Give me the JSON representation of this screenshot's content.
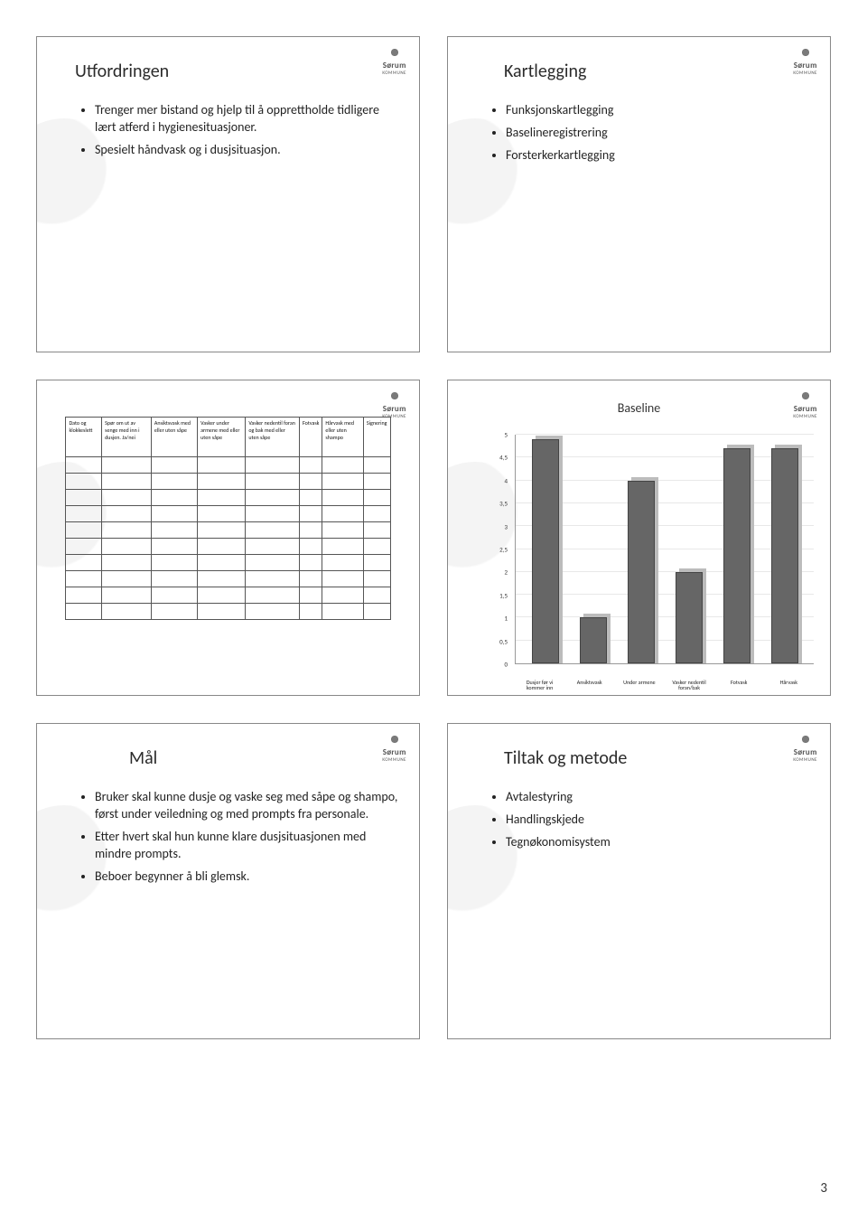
{
  "logo": {
    "name": "Sørum",
    "sub": "KOMMUNE"
  },
  "page_number": "3",
  "slides": {
    "s1": {
      "title": "Utfordringen",
      "bullets": [
        "Trenger mer bistand og hjelp til å opprettholde tidligere lært atferd i hygienesituasjoner.",
        "Spesielt håndvask og i dusjsituasjon."
      ]
    },
    "s2": {
      "title": "Kartlegging",
      "bullets": [
        "Funksjonskartlegging",
        "Baselineregistrering",
        "Forsterkerkartlegging"
      ]
    },
    "s3": {
      "headers": [
        "Dato og klokkeslett",
        "Spør om ut av senge med inn i dusjen. Ja/nei",
        "Ansiktsvask med eller uten såpe",
        "Vasker under armene med eller uten såpe",
        "Vasker nedentil foran og bak med eller uten såpe",
        "Fotvask",
        "Hårvask med eller uten shampo",
        "Signering"
      ]
    },
    "s4": {
      "title": "Baseline",
      "ylim": [
        0,
        5
      ],
      "ytick_step": 0.5,
      "bar_color": "#666666",
      "bar_shadow": "#bcbcbc",
      "grid_color": "#e8e8e8",
      "categories": [
        "Dusjer før vi kommer inn",
        "Ansiktsvask",
        "Under armene",
        "Vasker nedentil foran/bak",
        "Fotvask",
        "Hårvask"
      ],
      "values": [
        4.9,
        1.0,
        4.0,
        2.0,
        4.7,
        4.7
      ]
    },
    "s5": {
      "title": "Mål",
      "bullets": [
        "Bruker skal kunne dusje og vaske seg med såpe og shampo, først under veiledning og med prompts fra personale.",
        "Etter hvert skal hun kunne klare dusjsituasjonen med mindre prompts.",
        "Beboer begynner å bli glemsk."
      ]
    },
    "s6": {
      "title": "Tiltak og metode",
      "bullets": [
        "Avtalestyring",
        "Handlingskjede",
        "Tegnøkonomisystem"
      ]
    }
  }
}
